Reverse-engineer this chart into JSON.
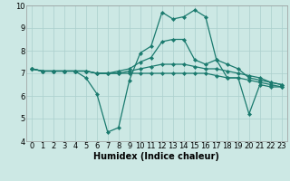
{
  "x": [
    0,
    1,
    2,
    3,
    4,
    5,
    6,
    7,
    8,
    9,
    10,
    11,
    12,
    13,
    14,
    15,
    16,
    17,
    18,
    19,
    20,
    21,
    22,
    23
  ],
  "series": [
    [
      7.2,
      7.1,
      7.1,
      7.1,
      7.1,
      6.8,
      6.1,
      4.4,
      4.6,
      6.7,
      7.9,
      8.2,
      9.7,
      9.4,
      9.5,
      9.8,
      9.5,
      7.6,
      6.8,
      6.8,
      5.2,
      6.5,
      6.4,
      6.4
    ],
    [
      7.2,
      7.1,
      7.1,
      7.1,
      7.1,
      7.1,
      7.0,
      7.0,
      7.1,
      7.2,
      7.5,
      7.7,
      8.4,
      8.5,
      8.5,
      7.6,
      7.4,
      7.6,
      7.4,
      7.2,
      6.8,
      6.7,
      6.6,
      6.5
    ],
    [
      7.2,
      7.1,
      7.1,
      7.1,
      7.1,
      7.1,
      7.0,
      7.0,
      7.0,
      7.1,
      7.2,
      7.3,
      7.4,
      7.4,
      7.4,
      7.3,
      7.2,
      7.2,
      7.1,
      7.0,
      6.9,
      6.8,
      6.6,
      6.5
    ],
    [
      7.2,
      7.1,
      7.1,
      7.1,
      7.1,
      7.1,
      7.0,
      7.0,
      7.0,
      7.0,
      7.0,
      7.0,
      7.0,
      7.0,
      7.0,
      7.0,
      7.0,
      6.9,
      6.8,
      6.8,
      6.7,
      6.6,
      6.5,
      6.4
    ]
  ],
  "color": "#1a7a6e",
  "bg_color": "#cce8e4",
  "grid_color_major": "#aacfcc",
  "grid_color_minor": "#aacfcc",
  "xlabel": "Humidex (Indice chaleur)",
  "ylim": [
    4,
    10
  ],
  "xlim_min": -0.5,
  "xlim_max": 23.5,
  "yticks": [
    4,
    5,
    6,
    7,
    8,
    9,
    10
  ],
  "xticks": [
    0,
    1,
    2,
    3,
    4,
    5,
    6,
    7,
    8,
    9,
    10,
    11,
    12,
    13,
    14,
    15,
    16,
    17,
    18,
    19,
    20,
    21,
    22,
    23
  ],
  "xlabel_fontsize": 7,
  "tick_fontsize": 6,
  "linewidth": 0.9,
  "markersize": 2.2
}
